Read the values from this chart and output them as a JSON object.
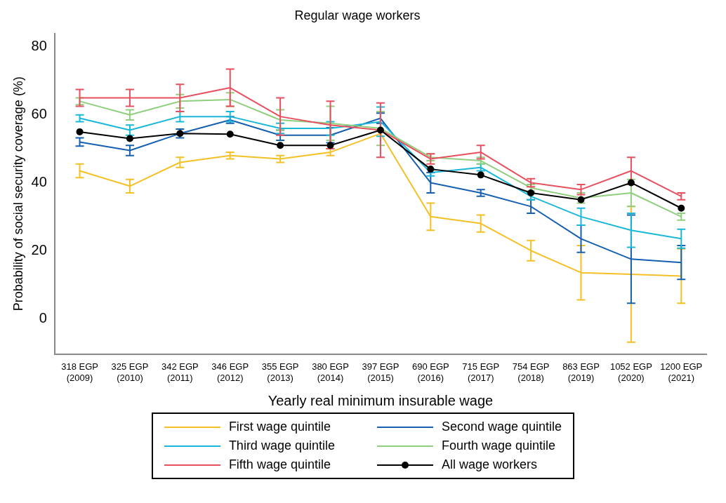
{
  "chart_data": {
    "type": "line",
    "title": "Regular wage workers",
    "xlabel": "Yearly real minimum insurable wage",
    "ylabel": "Probability of social security coverage (%)",
    "categories": [
      "318 EGP\n(2009)",
      "325 EGP\n(2010)",
      "342 EGP\n(2011)",
      "346 EGP\n(2012)",
      "355 EGP\n(2013)",
      "380 EGP\n(2014)",
      "397 EGP\n(2015)",
      "690 EGP\n(2016)",
      "715 EGP\n(2017)",
      "754 EGP\n(2018)",
      "863 EGP\n(2019)",
      "1052 EGP\n(2020)",
      "1200 EGP\n(2021)"
    ],
    "series": [
      {
        "name": "First wage quintile",
        "color": "#f5c026",
        "values": [
          43.5,
          39,
          46,
          48,
          47,
          49,
          54.5,
          30,
          28,
          20,
          13.5,
          13,
          12.5
        ],
        "errors": [
          2,
          2,
          1.5,
          1,
          1,
          1,
          null,
          4,
          2.5,
          3,
          8,
          20,
          8
        ]
      },
      {
        "name": "Second wage quintile",
        "color": "#1660b0",
        "values": [
          52,
          49.5,
          54.5,
          58.5,
          54,
          54,
          59,
          40,
          37,
          33,
          23.5,
          17.5,
          16.5
        ],
        "errors": [
          1.2,
          1.5,
          1.3,
          1,
          1.5,
          2.2,
          1.5,
          3,
          1,
          2,
          4,
          13,
          5
        ]
      },
      {
        "name": "Third wage quintile",
        "color": "#1ab8d8",
        "values": [
          59,
          55.5,
          59.5,
          59.5,
          56,
          56,
          58,
          43,
          44.5,
          36,
          30,
          26,
          23.5
        ],
        "errors": [
          1,
          1.5,
          1.5,
          1.5,
          1.5,
          2,
          4.3,
          1,
          1,
          1,
          2.5,
          5,
          2.8
        ]
      },
      {
        "name": "Fourth wage quintile",
        "color": "#8fcf7e",
        "values": [
          64,
          60,
          64,
          64.5,
          58.5,
          57.5,
          56,
          47.5,
          46.5,
          38.5,
          35.5,
          37,
          30
        ],
        "errors": [
          1,
          1.5,
          2,
          2,
          3,
          5,
          5,
          1,
          1,
          1,
          1.5,
          4,
          1
        ]
      },
      {
        "name": "Fifth wage quintile",
        "color": "#e85060",
        "values": [
          65,
          65,
          65,
          68,
          59.5,
          57,
          55.5,
          47,
          49,
          40,
          38,
          43.5,
          36
        ],
        "errors": [
          2.5,
          2.5,
          4,
          5.5,
          5.5,
          7,
          8,
          1.5,
          2,
          1.2,
          1.5,
          4,
          1
        ]
      },
      {
        "name": "All wage workers",
        "color": "#000000",
        "marker": "circle",
        "values": [
          55,
          53,
          54.5,
          54.3,
          51,
          51,
          55.5,
          44,
          42.3,
          37,
          35,
          40,
          32.5
        ]
      }
    ],
    "ylim": [
      -10.5,
      84
    ],
    "yticks": [
      0,
      20,
      40,
      60,
      80
    ],
    "grid": false,
    "legend": "bottom",
    "line_style": "solid"
  }
}
